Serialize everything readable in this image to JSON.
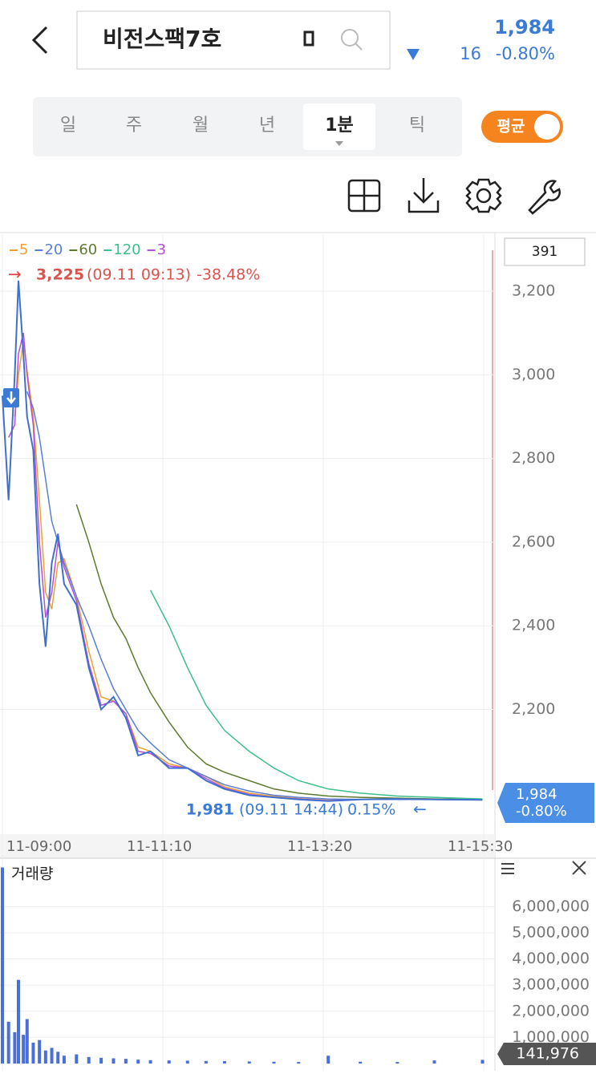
{
  "header": {
    "title": "비전스팩7호",
    "price": "1,984",
    "change": "16",
    "change_pct": "-0.80%"
  },
  "tabs": {
    "items": [
      "일",
      "주",
      "월",
      "년",
      "1분",
      "틱"
    ],
    "active": 4
  },
  "toggle": {
    "label": "평균"
  },
  "chart_data": [
    {
      "type": "line",
      "x": [
        0,
        5,
        10,
        13,
        17,
        20,
        25,
        30,
        35,
        40,
        45,
        50,
        60,
        70,
        80,
        90,
        100,
        110,
        120,
        135,
        150,
        165,
        180,
        200,
        220,
        240,
        264,
        290,
        320,
        350,
        389
      ],
      "price": [
        2950,
        2700,
        3000,
        3225,
        3050,
        2900,
        2820,
        2500,
        2350,
        2550,
        2620,
        2500,
        2450,
        2300,
        2200,
        2230,
        2180,
        2090,
        2100,
        2060,
        2060,
        2030,
        2010,
        1995,
        1990,
        1985,
        1981,
        1985,
        1986,
        1985,
        1984
      ],
      "price_color": "#3f6fd0",
      "series": [
        {
          "name": "5",
          "color": "#f0a030",
          "values": [
            null,
            null,
            2900,
            3000,
            3080,
            3010,
            2900,
            2700,
            2480,
            2440,
            2550,
            2560,
            2470,
            2340,
            2230,
            2220,
            2190,
            2110,
            2100,
            2070,
            2060,
            2040,
            2015,
            2000,
            1992,
            1987,
            1983,
            1985,
            1986,
            1985,
            1985
          ]
        },
        {
          "name": "20",
          "color": "#5b7fd6",
          "values": [
            null,
            null,
            null,
            null,
            null,
            2960,
            2920,
            2850,
            2750,
            2650,
            2600,
            2550,
            2470,
            2400,
            2320,
            2250,
            2200,
            2150,
            2120,
            2080,
            2060,
            2040,
            2020,
            2005,
            1995,
            1990,
            1986,
            1985,
            1985,
            1985,
            1984
          ]
        },
        {
          "name": "60",
          "color": "#5e7a2e",
          "values": [
            null,
            null,
            null,
            null,
            null,
            null,
            null,
            null,
            null,
            null,
            null,
            null,
            2690,
            2600,
            2500,
            2420,
            2370,
            2300,
            2240,
            2170,
            2110,
            2070,
            2050,
            2030,
            2010,
            2000,
            1993,
            1990,
            1988,
            1986,
            1985
          ]
        },
        {
          "name": "120",
          "color": "#3cbf8a",
          "values": [
            null,
            null,
            null,
            null,
            null,
            null,
            null,
            null,
            null,
            null,
            null,
            null,
            null,
            null,
            null,
            null,
            null,
            null,
            2485,
            2400,
            2300,
            2210,
            2150,
            2100,
            2060,
            2030,
            2010,
            2000,
            1993,
            1990,
            1986
          ]
        },
        {
          "name": "3",
          "color": "#b54fd6",
          "values": [
            null,
            2850,
            2880,
            3050,
            3100,
            3000,
            2880,
            2600,
            2420,
            2480,
            2600,
            2540,
            2460,
            2310,
            2210,
            2220,
            2190,
            2100,
            2095,
            2065,
            2060,
            2035,
            2012,
            1997,
            1990,
            1986,
            1982,
            1985,
            1986,
            1985,
            1984
          ]
        }
      ],
      "xlim": [
        0,
        398
      ],
      "xticks": [
        {
          "value": 0,
          "label": "11-09:00"
        },
        {
          "value": 130,
          "label": "11-11:10"
        },
        {
          "value": 260,
          "label": "11-13:20"
        },
        {
          "value": 390,
          "label": "11-15:30"
        }
      ],
      "ylim": [
        1902,
        3336
      ],
      "yticks": [
        {
          "value": 2200,
          "label": "2,200"
        },
        {
          "value": 2400,
          "label": "2,400"
        },
        {
          "value": 2600,
          "label": "2,600"
        },
        {
          "value": 2800,
          "label": "2,800"
        },
        {
          "value": 3000,
          "label": "3,000"
        },
        {
          "value": 3200,
          "label": "3,200"
        }
      ],
      "grid": true,
      "high": {
        "price": "3,225",
        "time": "(09.11 09:13)",
        "pct": "-38.48%"
      },
      "low": {
        "price": "1,981",
        "time": "(09.11 14:44)",
        "pct": "0.15%"
      },
      "counter": "391",
      "last": {
        "price": "1,984",
        "pct": "-0.80%"
      }
    },
    {
      "type": "bar",
      "title": "거래량",
      "x": [
        0,
        5,
        10,
        13,
        17,
        20,
        25,
        30,
        35,
        40,
        45,
        50,
        60,
        70,
        80,
        90,
        100,
        110,
        120,
        135,
        150,
        165,
        180,
        200,
        220,
        240,
        264,
        290,
        320,
        350,
        389
      ],
      "values": [
        7500000,
        1600000,
        1200000,
        3200000,
        1100000,
        1700000,
        800000,
        900000,
        500000,
        600000,
        450000,
        300000,
        350000,
        250000,
        220000,
        200000,
        180000,
        150000,
        130000,
        120000,
        110000,
        100000,
        90000,
        80000,
        70000,
        60000,
        300000,
        70000,
        60000,
        120000,
        141976
      ],
      "value_labels": [
        null,
        null,
        null,
        null,
        null,
        null,
        null,
        null,
        null,
        null,
        null,
        null,
        null,
        null,
        null,
        null,
        null,
        null,
        null,
        null,
        null,
        null,
        null,
        null,
        null,
        null,
        null,
        null,
        null,
        null,
        "141,976"
      ],
      "color": "#4a6fd8",
      "xlim": [
        0,
        398
      ],
      "ylim": [
        0,
        7700000
      ],
      "yticks": [
        {
          "value": 1000000,
          "label": "1,000,000"
        },
        {
          "value": 2000000,
          "label": "2,000,000"
        },
        {
          "value": 3000000,
          "label": "3,000,000"
        },
        {
          "value": 4000000,
          "label": "4,000,000"
        },
        {
          "value": 5000000,
          "label": "5,000,000"
        },
        {
          "value": 6000000,
          "label": "6,000,000"
        }
      ],
      "grid": true
    }
  ]
}
